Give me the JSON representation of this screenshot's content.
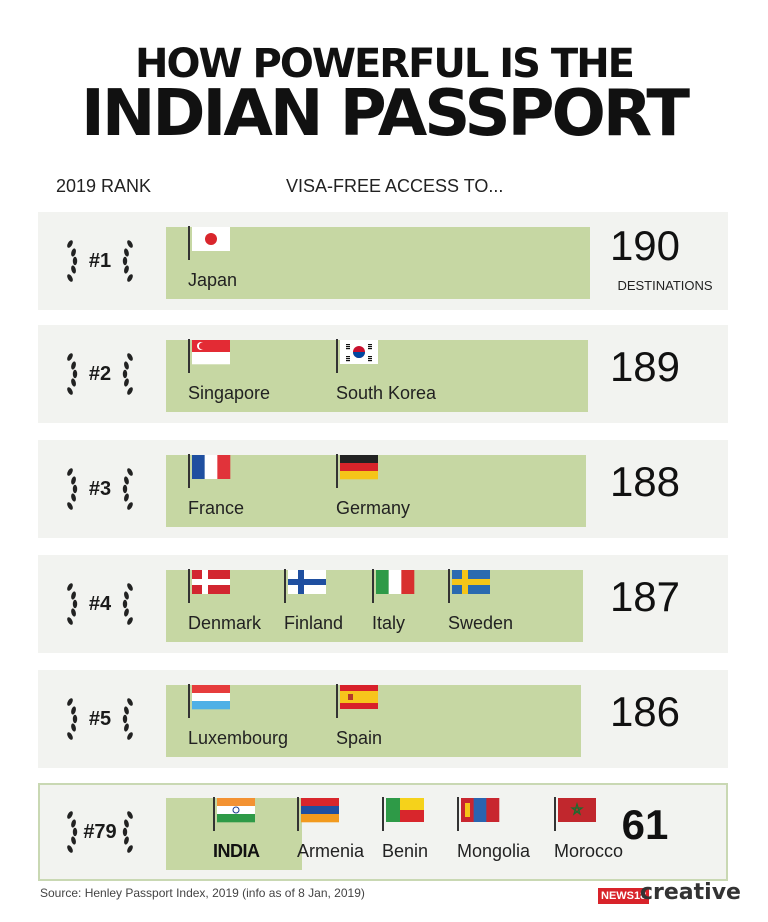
{
  "title": {
    "line1": "HOW POWERFUL IS THE",
    "line2": "INDIAN PASSPORT"
  },
  "headers": {
    "rank": "2019 RANK",
    "access": "VISA-FREE ACCESS TO..."
  },
  "colors": {
    "bar": "#c6d7a3",
    "row_bg": "#f2f3f0",
    "highlight_border": "#c9d8b3"
  },
  "chart_data": {
    "type": "bar",
    "title": "HOW POWERFUL IS THE INDIAN PASSPORT",
    "xlabel": "VISA-FREE ACCESS TO...",
    "ylabel": "2019 RANK",
    "rows": [
      {
        "rank": "#1",
        "value": 190,
        "unit": "DESTINATIONS",
        "countries": [
          {
            "name": "Japan",
            "flag": "japan-flag"
          }
        ]
      },
      {
        "rank": "#2",
        "value": 189,
        "countries": [
          {
            "name": "Singapore",
            "flag": "singapore-flag"
          },
          {
            "name": "South Korea",
            "flag": "south-korea-flag"
          }
        ]
      },
      {
        "rank": "#3",
        "value": 188,
        "countries": [
          {
            "name": "France",
            "flag": "france-flag"
          },
          {
            "name": "Germany",
            "flag": "germany-flag"
          }
        ]
      },
      {
        "rank": "#4",
        "value": 187,
        "countries": [
          {
            "name": "Denmark",
            "flag": "denmark-flag"
          },
          {
            "name": "Finland",
            "flag": "finland-flag"
          },
          {
            "name": "Italy",
            "flag": "italy-flag"
          },
          {
            "name": "Sweden",
            "flag": "sweden-flag"
          }
        ]
      },
      {
        "rank": "#5",
        "value": 186,
        "countries": [
          {
            "name": "Luxembourg",
            "flag": "luxembourg-flag"
          },
          {
            "name": "Spain",
            "flag": "spain-flag"
          }
        ]
      },
      {
        "rank": "#79",
        "value": 61,
        "highlight": true,
        "countries": [
          {
            "name": "INDIA",
            "flag": "india-flag"
          },
          {
            "name": "Armenia",
            "flag": "armenia-flag"
          },
          {
            "name": "Benin",
            "flag": "benin-flag"
          },
          {
            "name": "Mongolia",
            "flag": "mongolia-flag"
          },
          {
            "name": "Morocco",
            "flag": "morocco-flag"
          }
        ]
      }
    ]
  },
  "footer": {
    "source": "Source: Henley Passport Index, 2019 (info as of 8 Jan, 2019)",
    "logo_badge": "NEWS18",
    "logo_word": "creative"
  }
}
